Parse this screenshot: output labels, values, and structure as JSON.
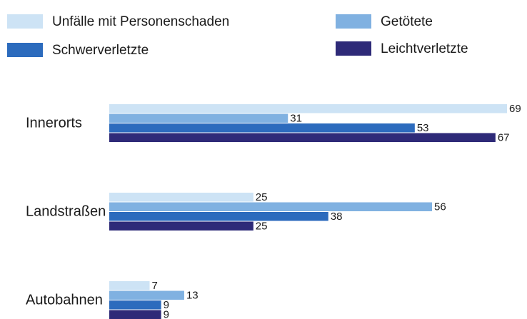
{
  "chart_data": {
    "type": "barh",
    "categories": [
      "Innerorts",
      "Landstraßen",
      "Autobahnen"
    ],
    "series": [
      {
        "name": "Unfälle mit Personenschaden",
        "color": "#cde3f5",
        "values": [
          69,
          25,
          7
        ]
      },
      {
        "name": "Getötete",
        "color": "#80b1e1",
        "values": [
          31,
          56,
          13
        ]
      },
      {
        "name": "Schwerverletzte",
        "color": "#2c6bbd",
        "values": [
          53,
          38,
          9
        ]
      },
      {
        "name": "Leichtverletzte",
        "color": "#2e2a78",
        "values": [
          67,
          25,
          9
        ]
      }
    ],
    "legend": "top"
  }
}
